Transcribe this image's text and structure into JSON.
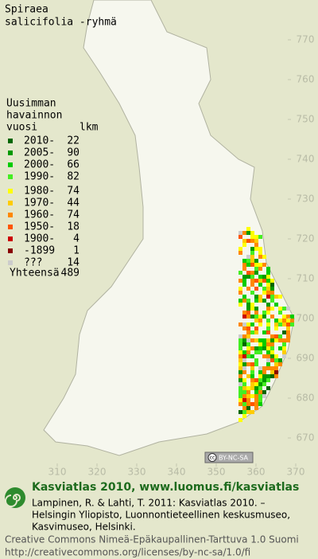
{
  "title": [
    "Spiraea",
    "salicifolia -ryhmä"
  ],
  "legend": {
    "header": [
      "Uusimman",
      "havainnon",
      "vuosi"
    ],
    "count_header": "lkm",
    "items": [
      {
        "label": "2010-",
        "count": 22,
        "color": "#006600"
      },
      {
        "label": "2005-",
        "count": 90,
        "color": "#009900"
      },
      {
        "label": "2000-",
        "count": 66,
        "color": "#00cc00"
      },
      {
        "label": "1990-",
        "count": 82,
        "color": "#44ee22"
      },
      {
        "label": "1980-",
        "count": 74,
        "color": "#ffff00"
      },
      {
        "label": "1970-",
        "count": 44,
        "color": "#ffcc00"
      },
      {
        "label": "1960-",
        "count": 74,
        "color": "#ff8800"
      },
      {
        "label": "1950-",
        "count": 18,
        "color": "#ff5500"
      },
      {
        "label": "1900-",
        "count": 4,
        "color": "#cc0000"
      },
      {
        "label": "-1899",
        "count": 1,
        "color": "#880000"
      },
      {
        "label": "???",
        "count": 14,
        "color": "#cccccc"
      }
    ],
    "total_label": "Yhteensä",
    "total": 489
  },
  "map": {
    "xticks": [
      310,
      320,
      330,
      340,
      350,
      360,
      370
    ],
    "yticks": [
      770,
      760,
      750,
      740,
      730,
      720,
      710,
      700,
      690,
      680,
      670
    ]
  },
  "badge": {
    "icon": "cc",
    "text": "BY-NC-SA"
  },
  "footer": {
    "brand": "Kasviatlas 2010, www.luomus.fi/kasviatlas",
    "citation": [
      "Lampinen, R. & Lahti, T. 2011: Kasviatlas 2010. –",
      "Helsingin Yliopisto, Luonnontieteellinen keskusmuseo,",
      "Kasvimuseo, Helsinki."
    ],
    "license": [
      "Creative Commons Nimeä-Epäkaupallinen-Tarttuva 1.0 Suomi",
      "http://creativecommons.org/licenses/by-nc-sa/1.0/fi"
    ]
  }
}
